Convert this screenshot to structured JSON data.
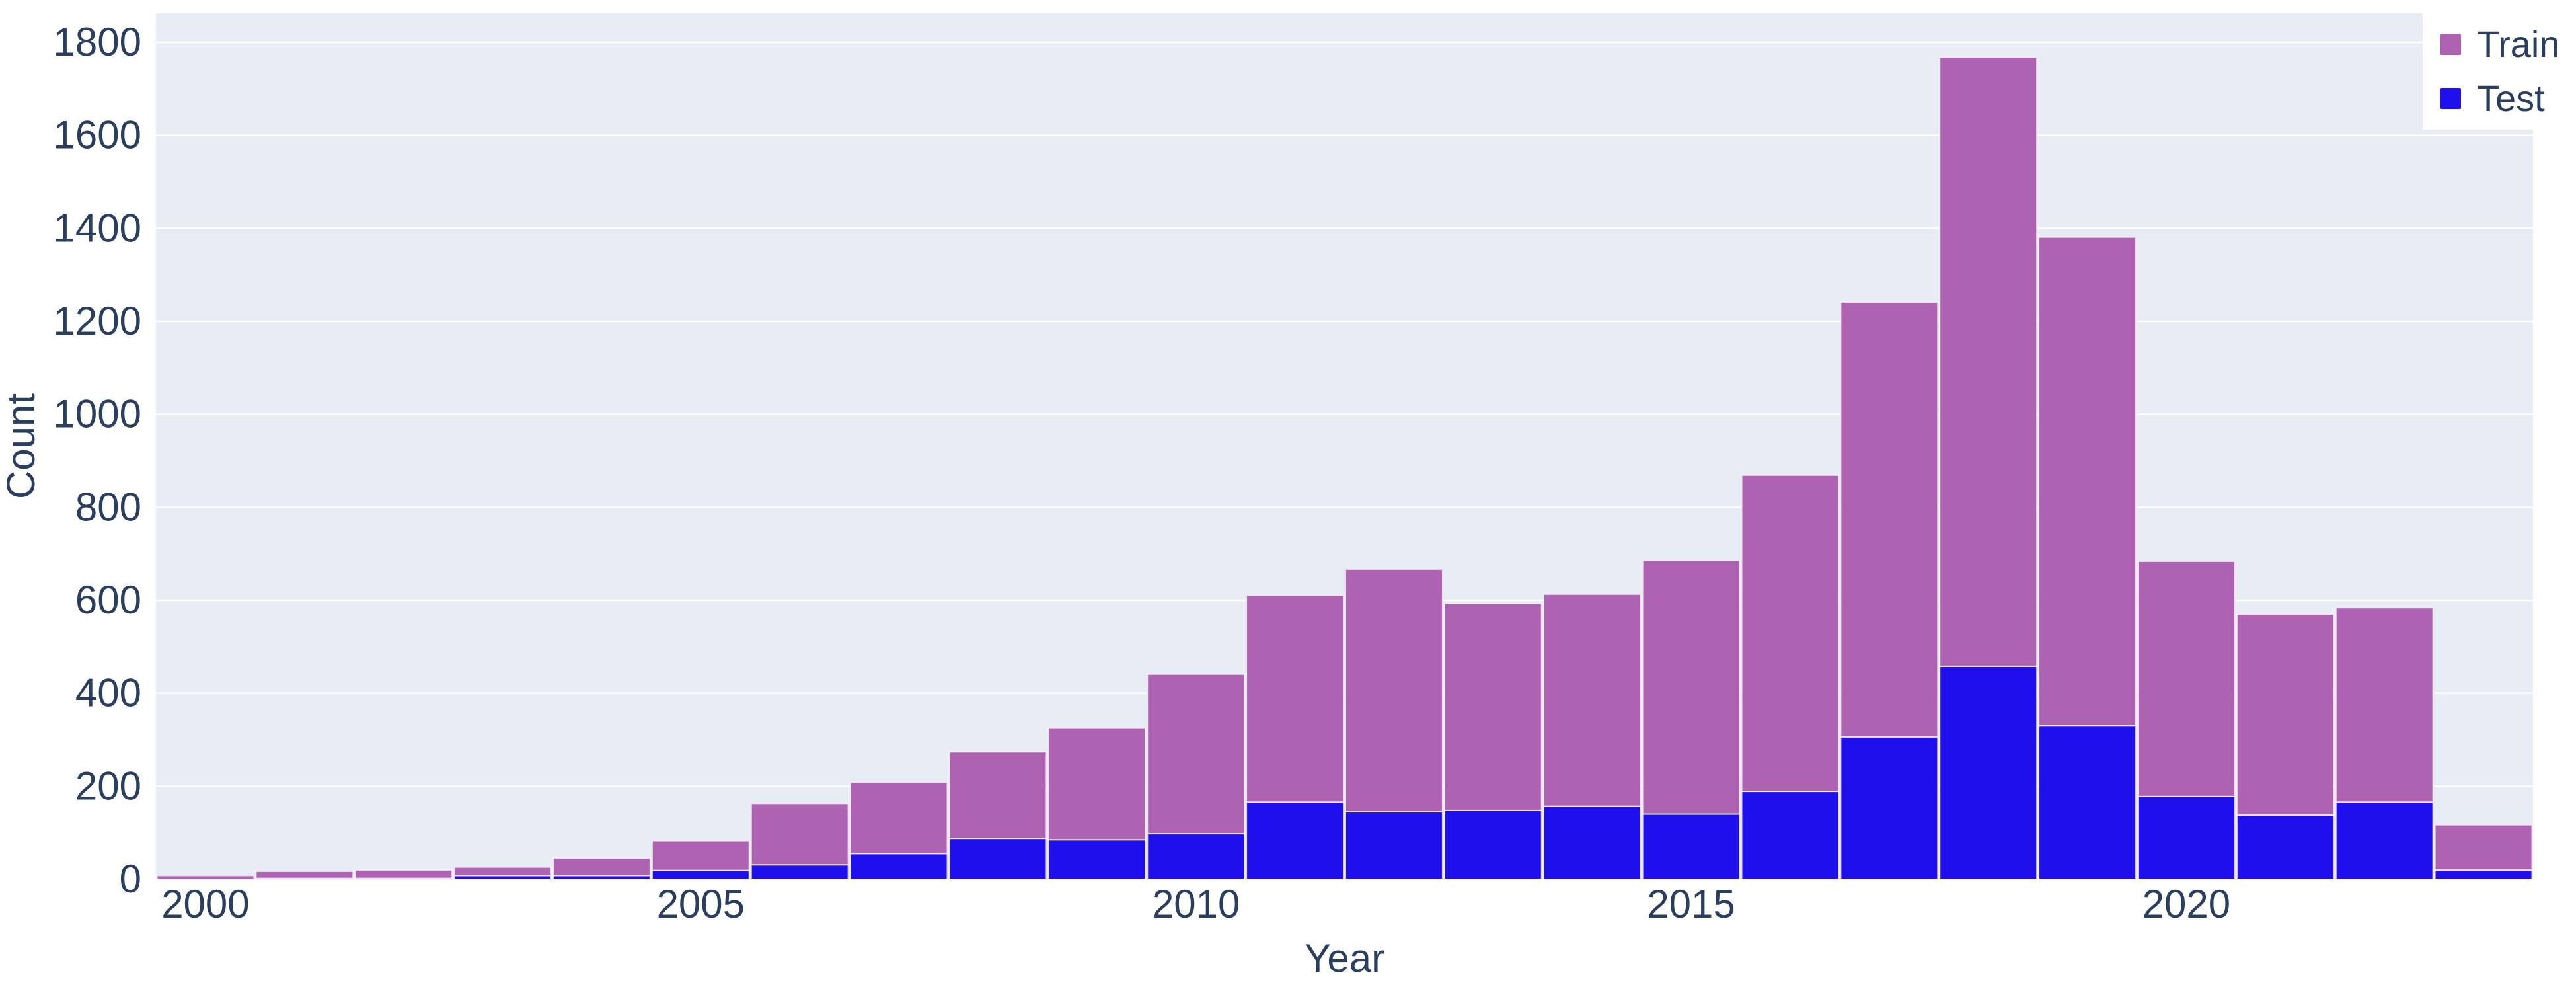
{
  "chart_data": {
    "type": "bar",
    "stacked": true,
    "title": "",
    "xlabel": "Year",
    "ylabel": "Count",
    "categories": [
      2000,
      2001,
      2002,
      2003,
      2004,
      2005,
      2006,
      2007,
      2008,
      2009,
      2010,
      2011,
      2012,
      2013,
      2014,
      2015,
      2016,
      2017,
      2018,
      2019,
      2020,
      2021,
      2022,
      2023
    ],
    "series": [
      {
        "name": "Train",
        "color": "#ae62b2",
        "values": [
          8,
          15,
          18,
          18,
          37,
          64,
          132,
          154,
          186,
          241,
          343,
          445,
          522,
          445,
          456,
          546,
          680,
          935,
          1310,
          1050,
          506,
          432,
          418,
          97
        ]
      },
      {
        "name": "Test",
        "color": "#1f0fea",
        "values": [
          0,
          2,
          2,
          8,
          8,
          19,
          31,
          55,
          88,
          85,
          98,
          166,
          145,
          148,
          157,
          140,
          189,
          306,
          458,
          331,
          178,
          138,
          166,
          20
        ]
      }
    ],
    "totals": [
      8,
      17,
      20,
      26,
      45,
      83,
      163,
      209,
      274,
      326,
      441,
      611,
      667,
      593,
      613,
      686,
      869,
      1241,
      1768,
      1381,
      684,
      570,
      584,
      117
    ],
    "bin_width_years": 1,
    "ylim": [
      0,
      1800
    ],
    "yticks": [
      0,
      200,
      400,
      600,
      800,
      1000,
      1200,
      1400,
      1600,
      1800
    ],
    "xticks": [
      2000,
      2005,
      2010,
      2015,
      2020
    ],
    "grid": true,
    "legend_position": "top-right",
    "colors": {
      "plot_background": "#e7ecf5",
      "grid_line": "#ffffff",
      "text": "#2a3f5f",
      "bar_edge": "rgba(248,238,250,0.85)",
      "page_background": "#ffffff"
    }
  },
  "legend": {
    "train_label": "Train",
    "test_label": "Test"
  }
}
